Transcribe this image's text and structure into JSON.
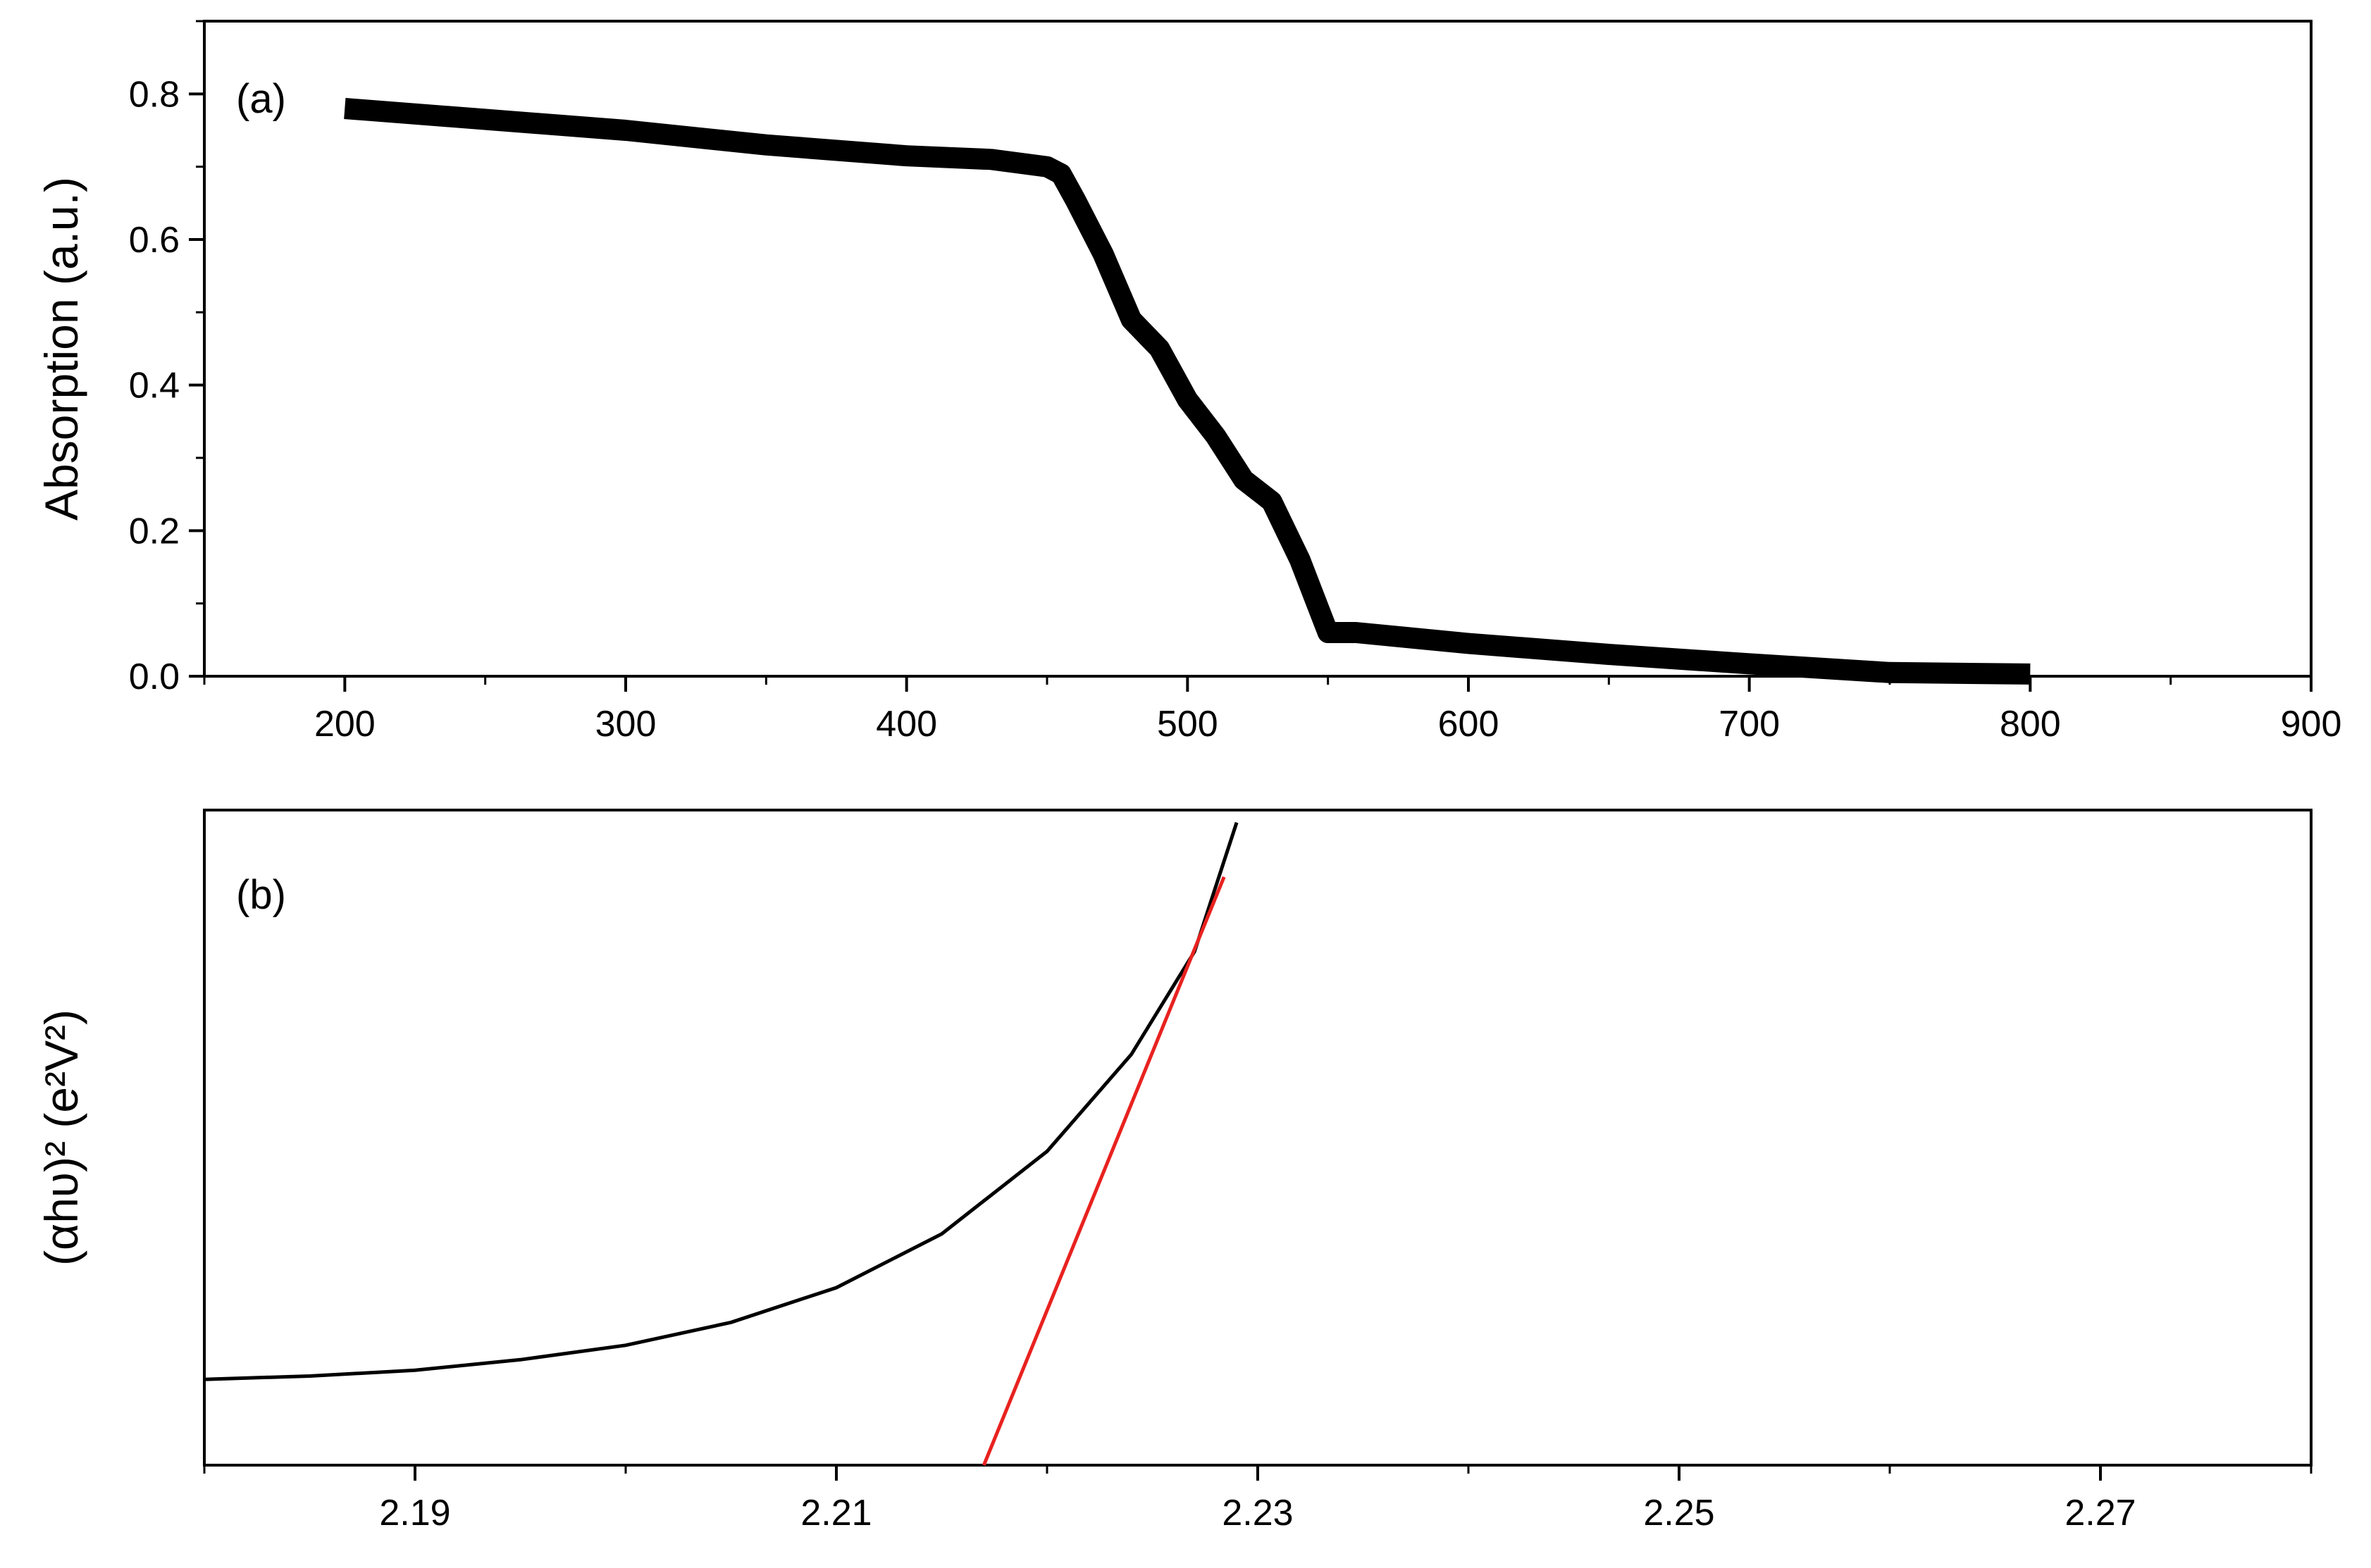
{
  "chart_data": [
    {
      "type": "line",
      "panel_label": "(a)",
      "title": "",
      "xlabel": "",
      "ylabel": "Absorption (a.u.)",
      "xlim": [
        150,
        900
      ],
      "ylim": [
        0,
        0.9
      ],
      "x_ticks": [
        200,
        300,
        400,
        500,
        600,
        700,
        800,
        900
      ],
      "x_tick_labels": [
        "200",
        "300",
        "400",
        "500",
        "600",
        "700",
        "800",
        "900"
      ],
      "y_ticks": [
        0.0,
        0.2,
        0.4,
        0.6,
        0.8
      ],
      "y_tick_labels": [
        "0.0",
        "0.2",
        "0.4",
        "0.6",
        "0.8"
      ],
      "grid": false,
      "series": [
        {
          "color": "#000000",
          "x": [
            200,
            250,
            300,
            350,
            400,
            430,
            450,
            455,
            460,
            470,
            480,
            490,
            500,
            510,
            520,
            530,
            540,
            545,
            550,
            560,
            600,
            650,
            700,
            750,
            800
          ],
          "y": [
            0.78,
            0.765,
            0.75,
            0.73,
            0.715,
            0.71,
            0.7,
            0.69,
            0.655,
            0.58,
            0.49,
            0.45,
            0.38,
            0.33,
            0.27,
            0.24,
            0.16,
            0.11,
            0.06,
            0.06,
            0.045,
            0.03,
            0.017,
            0.005,
            0.003
          ]
        }
      ]
    },
    {
      "type": "line",
      "panel_label": "(b)",
      "title": "",
      "xlabel": "",
      "ylabel": "(αhυ)² (e²V²)",
      "xlim": [
        2.18,
        2.28
      ],
      "ylim": [
        0,
        1
      ],
      "x_ticks": [
        2.19,
        2.21,
        2.23,
        2.25,
        2.27
      ],
      "x_tick_labels": [
        "2.19",
        "2.21",
        "2.23",
        "2.25",
        "2.27"
      ],
      "y_tick_labels": [],
      "grid": false,
      "series": [
        {
          "color": "#000000",
          "x": [
            2.18,
            2.185,
            2.19,
            2.195,
            2.2,
            2.205,
            2.21,
            2.215,
            2.22,
            2.224,
            2.227,
            2.229
          ],
          "y": [
            0.131,
            0.136,
            0.145,
            0.161,
            0.183,
            0.218,
            0.271,
            0.353,
            0.479,
            0.627,
            0.784,
            0.981
          ]
        },
        {
          "color": "#e8221f",
          "x": [
            2.217,
            2.2284
          ],
          "y": [
            0.0,
            0.898
          ]
        }
      ]
    }
  ]
}
